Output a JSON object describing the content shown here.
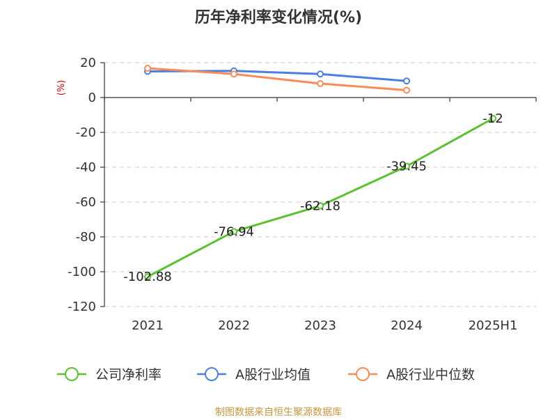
{
  "chart_data": {
    "type": "line",
    "title": "历年净利率变化情况(%)",
    "ylabel": "(%)",
    "categories": [
      "2021",
      "2022",
      "2023",
      "2024",
      "2025H1"
    ],
    "ylim": [
      -120,
      20
    ],
    "yticks": [
      20,
      0,
      -20,
      -40,
      -60,
      -80,
      -100,
      -120
    ],
    "grid": true,
    "legend_position": "bottom",
    "series": [
      {
        "name": "公司净利率",
        "color": "#5ac12e",
        "values": [
          -102.88,
          -76.94,
          -62.18,
          -39.45,
          -12
        ],
        "labels": [
          "-102.88",
          "-76.94",
          "-62.18",
          "-39.45",
          "-12"
        ]
      },
      {
        "name": "A股行业均值",
        "color": "#4a7ee0",
        "values": [
          15.0,
          15.3,
          13.5,
          9.5,
          null
        ]
      },
      {
        "name": "A股行业中位数",
        "color": "#f98c56",
        "values": [
          16.8,
          13.5,
          8.0,
          4.2,
          null
        ]
      }
    ]
  },
  "colors": {
    "axis": "#333333",
    "grid": "#cccccc",
    "unit": "#cc0000",
    "source": "#c8963e"
  },
  "source_text": "制图数据来自恒生聚源数据库"
}
